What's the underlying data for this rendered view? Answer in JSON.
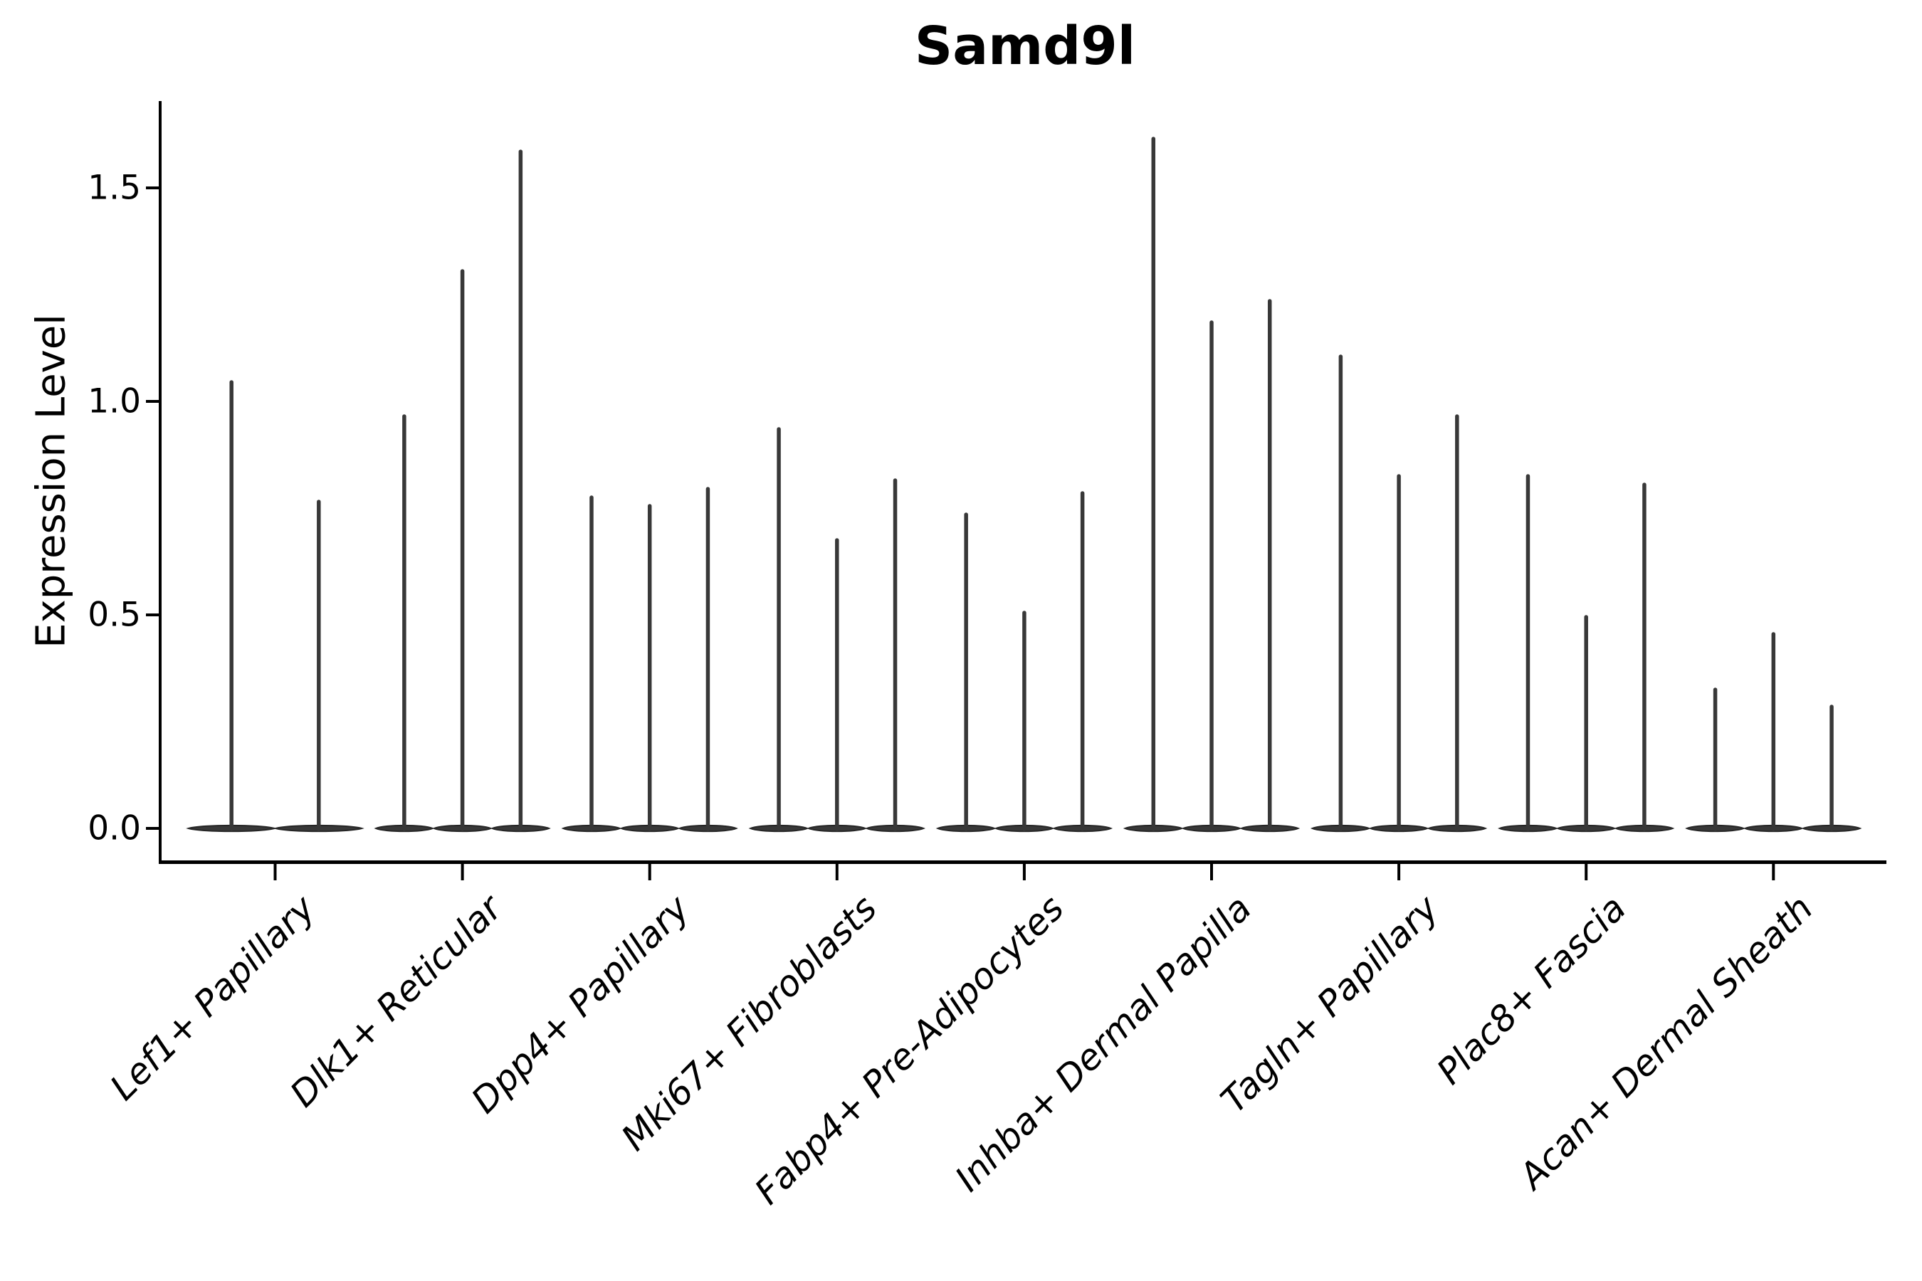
{
  "chart_data": {
    "type": "violin",
    "title": "Samd9l",
    "ylabel": "Expression Level",
    "xlabel": "",
    "ytick_labels": [
      "0.0",
      "0.5",
      "1.0",
      "1.5"
    ],
    "ytick_values": [
      0.0,
      0.5,
      1.0,
      1.5
    ],
    "ylim": [
      -0.08,
      1.7
    ],
    "grid": false,
    "legend_position": "none",
    "groups": [
      {
        "label": "Lef1+ Papillary",
        "violin_max_expression": [
          1.05,
          0.77
        ]
      },
      {
        "label": "Dlk1+ Reticular",
        "violin_max_expression": [
          0.97,
          1.31,
          1.59
        ]
      },
      {
        "label": "Dpp4+ Papillary",
        "violin_max_expression": [
          0.78,
          0.76,
          0.8
        ]
      },
      {
        "label": "Mki67+ Fibroblasts",
        "violin_max_expression": [
          0.94,
          0.68,
          0.82
        ]
      },
      {
        "label": "Fabp4+ Pre-Adipocytes",
        "violin_max_expression": [
          0.74,
          0.51,
          0.79
        ]
      },
      {
        "label": "Inhba+ Dermal Papilla",
        "violin_max_expression": [
          1.62,
          1.19,
          1.24
        ]
      },
      {
        "label": "Tagln+ Papillary",
        "violin_max_expression": [
          1.11,
          0.83,
          0.97
        ]
      },
      {
        "label": "Plac8+ Fascia",
        "violin_max_expression": [
          0.83,
          0.5,
          0.81
        ]
      },
      {
        "label": "Acan+ Dermal Sheath",
        "violin_max_expression": [
          0.33,
          0.46,
          0.29
        ]
      }
    ],
    "colors": {
      "violin_fill": "#383838",
      "violin_edge": "#262626",
      "axis": "#000000",
      "text": "#000000",
      "background": "#ffffff"
    }
  }
}
